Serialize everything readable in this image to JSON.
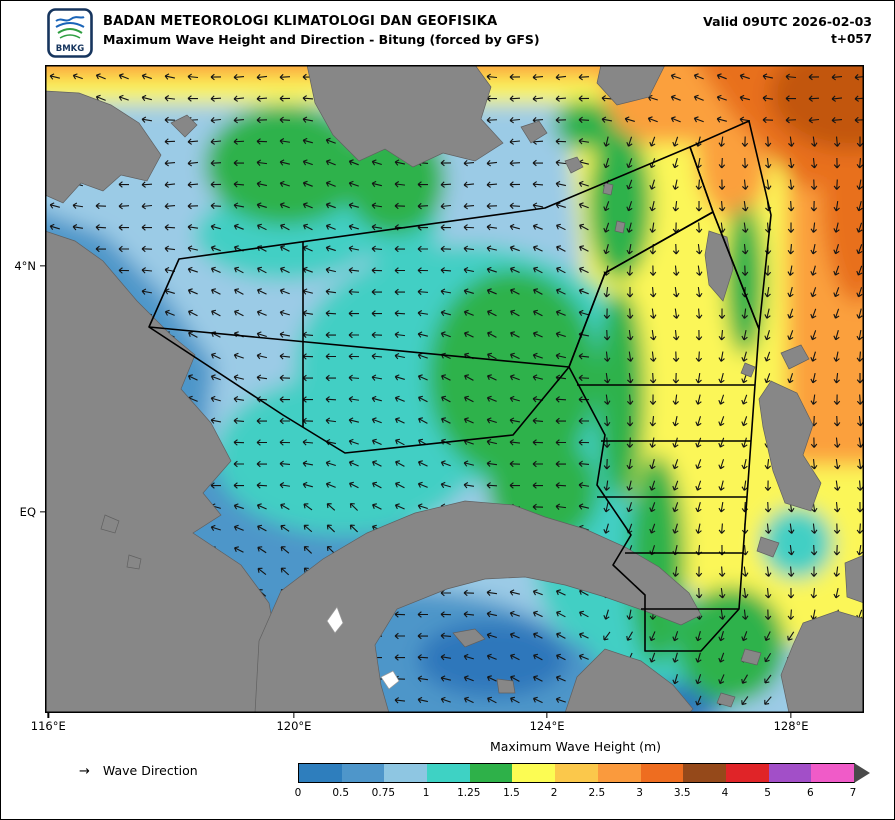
{
  "header": {
    "logo_label": "BMKG",
    "agency": "BADAN METEOROLOGI KLIMATOLOGI DAN GEOFISIKA",
    "product": "Maximum Wave Height and Direction - Bitung (forced by GFS)",
    "valid": "Valid 09UTC 2026-02-03",
    "timestep": "t+057"
  },
  "map": {
    "y_axis_ticks": [
      {
        "label": "4°N",
        "y_pct": 31.0
      },
      {
        "label": "EQ",
        "y_pct": 69.0
      }
    ],
    "x_axis_ticks": [
      {
        "label": "116°E",
        "x_pct": 0.4
      },
      {
        "label": "120°E",
        "x_pct": 30.4
      },
      {
        "label": "124°E",
        "x_pct": 61.3
      },
      {
        "label": "128°E",
        "x_pct": 91.1
      }
    ],
    "colors": {
      "land": "#878787",
      "sea_base": "#9bcbe6",
      "zone_outline": "#000000"
    }
  },
  "legend": {
    "direction_arrow": "→",
    "direction_label": "Wave Direction",
    "colorbar_title": "Maximum Wave Height (m)",
    "tick_labels": [
      "0",
      "0.5",
      "0.75",
      "1",
      "1.25",
      "1.5",
      "2",
      "2.5",
      "3",
      "3.5",
      "4",
      "5",
      "6",
      "7"
    ],
    "segment_colors": [
      "#2e7ebd",
      "#4e96ca",
      "#8ec6e2",
      "#3ed2c4",
      "#2eb149",
      "#fcfc53",
      "#fbc84b",
      "#fa9a3d",
      "#ee6d20",
      "#95491a",
      "#e02428",
      "#a24fc8",
      "#f05bc8"
    ],
    "arrow_color": "#4a4a4a"
  },
  "arrows": {
    "color": "#141414",
    "grid_step_x": 23,
    "grid_step_y": 21.5
  }
}
